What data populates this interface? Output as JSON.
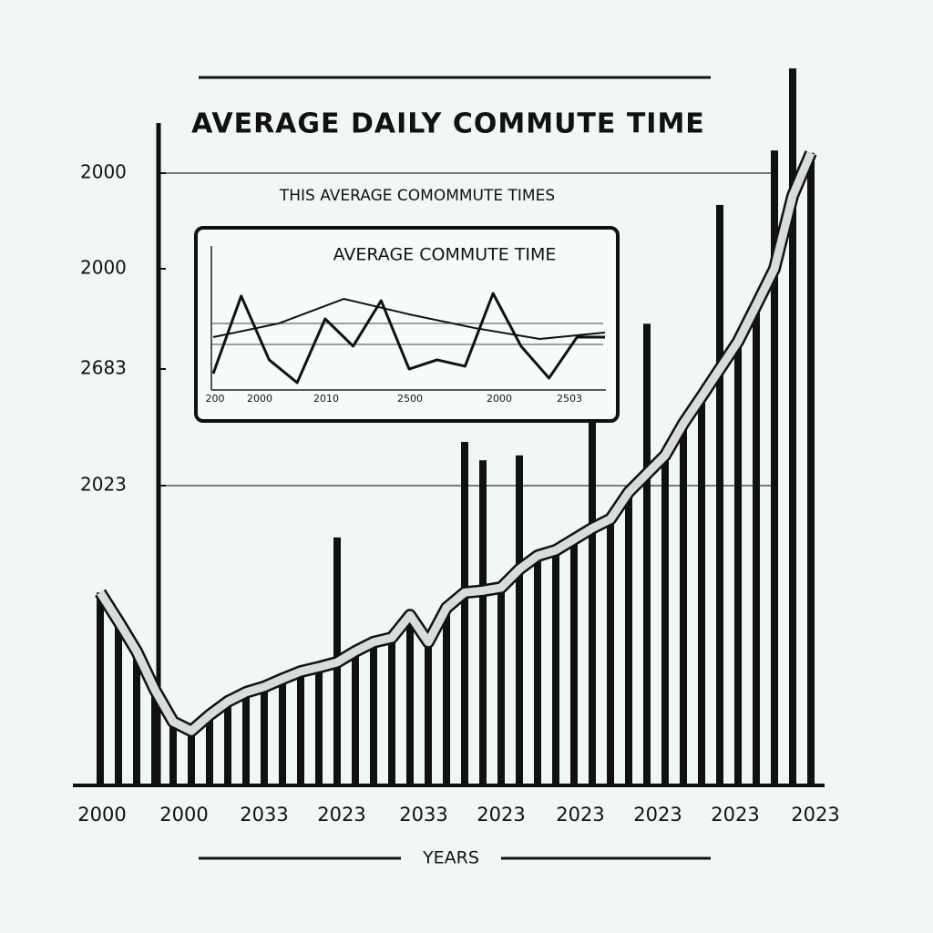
{
  "chart_data": {
    "type": "bar",
    "title": "AVERAGE DAILY COMMUTE TIME",
    "subtitle": "THIS AVERAGE COMOMMUTE TIMES",
    "x_label": "YEARS",
    "x_labels": [
      "2000",
      "2000",
      "2033",
      "2023",
      "2033",
      "2023",
      "2023",
      "2023",
      "2023",
      "2023"
    ],
    "y_labels": [
      "2000",
      "2000",
      "2683",
      "2023"
    ],
    "color": "#111111",
    "values": [
      31.5,
      26.8,
      21.9,
      15.6,
      10.4,
      8.9,
      11.5,
      13.7,
      15.2,
      16.1,
      17.4,
      18.6,
      19.3,
      40.5,
      21.9,
      23.4,
      24.1,
      27.8,
      23.4,
      29.0,
      56.1,
      53.1,
      32.3,
      53.9,
      37.5,
      38.4,
      40.2,
      64.3,
      43.5,
      47.9,
      75.4,
      53.9,
      59.1,
      63.5,
      94.8,
      72.5,
      78.4,
      103.7,
      117.1,
      103.3
    ],
    "trend": [
      31.5,
      26.8,
      21.9,
      15.6,
      10.4,
      8.9,
      11.5,
      13.7,
      15.2,
      16.1,
      17.4,
      18.6,
      19.3,
      20.1,
      21.9,
      23.4,
      24.1,
      27.8,
      23.4,
      29.0,
      31.5,
      31.8,
      32.3,
      35.3,
      37.5,
      38.4,
      40.2,
      42.0,
      43.5,
      47.9,
      50.9,
      53.9,
      59.1,
      63.5,
      68.0,
      72.5,
      78.4,
      84.4,
      96.3,
      103.3
    ],
    "inset": {
      "title": "AVERAGE COMMUTE TIME",
      "x_labels": [
        "200",
        "2000",
        "2010",
        "2500",
        "2000",
        "2503"
      ],
      "series": [
        {
          "values": [
            7.1,
            67.9,
            17.9,
            0,
            50,
            28.6,
            64.3,
            10.7,
            17.9,
            12.9,
            70,
            28.6,
            3.6,
            35.7,
            35.7
          ]
        },
        {
          "values": [
            35.7,
            46.4,
            65.7,
            53.6,
            42.9,
            34.3,
            39.3
          ]
        }
      ]
    }
  }
}
